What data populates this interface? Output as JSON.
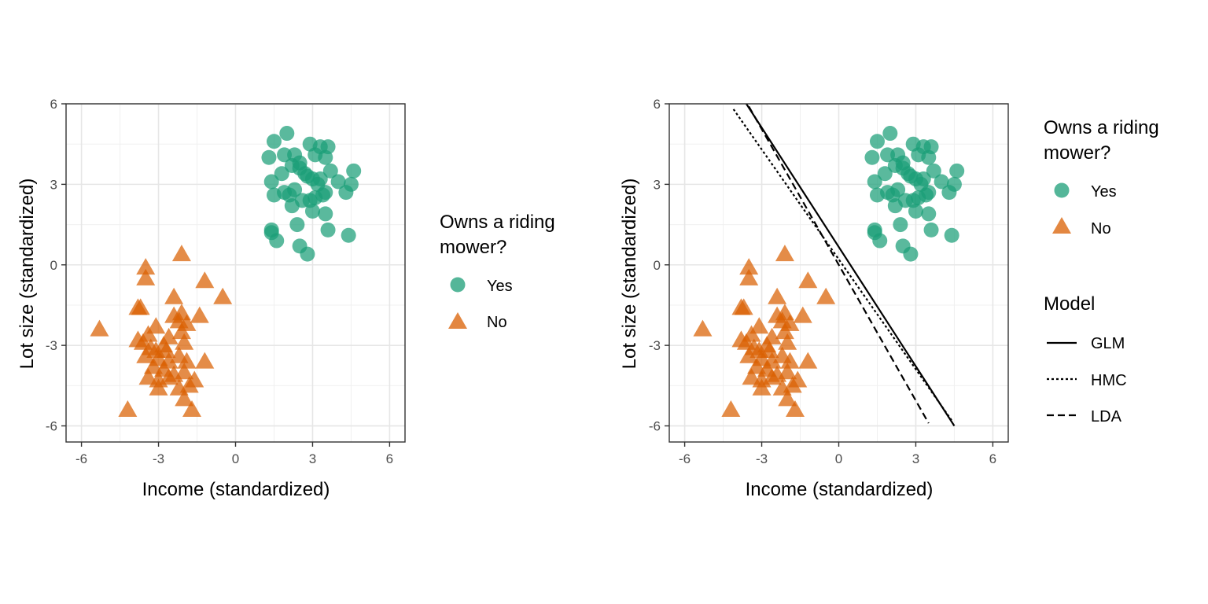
{
  "chart_data": [
    {
      "type": "scatter",
      "xlabel": "Income (standardized)",
      "ylabel": "Lot size (standardized)",
      "xlim": [
        -6.6,
        6.6
      ],
      "ylim": [
        -6.6,
        6.0
      ],
      "xticks": [
        -6,
        -3,
        0,
        3,
        6
      ],
      "yticks": [
        -6,
        -3,
        0,
        3,
        6
      ],
      "tick_labels_x": [
        "-6",
        "-3",
        "0",
        "3",
        "6"
      ],
      "tick_labels_y": [
        "-6",
        "-3",
        "0",
        "3",
        "6"
      ],
      "grid": true,
      "legend": {
        "placement": "right",
        "title_lines": [
          "Owns a riding",
          "mower?"
        ],
        "entries": [
          "Yes",
          "No"
        ]
      },
      "series": [
        {
          "name": "Yes",
          "marker": "circle",
          "color": "#1b9e77",
          "points": [
            [
              1.5,
              4.6
            ],
            [
              2.0,
              4.9
            ],
            [
              1.3,
              4.0
            ],
            [
              2.9,
              4.5
            ],
            [
              3.3,
              4.4
            ],
            [
              3.6,
              4.4
            ],
            [
              3.5,
              4.0
            ],
            [
              1.9,
              4.1
            ],
            [
              2.3,
              4.1
            ],
            [
              2.5,
              3.8
            ],
            [
              3.1,
              4.1
            ],
            [
              1.4,
              3.1
            ],
            [
              1.8,
              3.4
            ],
            [
              2.2,
              3.7
            ],
            [
              2.5,
              3.6
            ],
            [
              2.7,
              3.4
            ],
            [
              2.8,
              3.3
            ],
            [
              3.0,
              3.2
            ],
            [
              3.3,
              3.2
            ],
            [
              3.7,
              3.5
            ],
            [
              4.0,
              3.1
            ],
            [
              4.6,
              3.5
            ],
            [
              4.5,
              3.0
            ],
            [
              1.5,
              2.6
            ],
            [
              1.9,
              2.7
            ],
            [
              2.1,
              2.6
            ],
            [
              2.3,
              2.8
            ],
            [
              2.2,
              2.2
            ],
            [
              2.6,
              2.4
            ],
            [
              2.9,
              2.4
            ],
            [
              3.1,
              2.5
            ],
            [
              3.5,
              2.7
            ],
            [
              4.3,
              2.7
            ],
            [
              3.0,
              2.0
            ],
            [
              3.5,
              1.9
            ],
            [
              2.4,
              1.5
            ],
            [
              1.4,
              1.3
            ],
            [
              1.6,
              0.9
            ],
            [
              2.5,
              0.7
            ],
            [
              2.8,
              0.4
            ],
            [
              3.6,
              1.3
            ],
            [
              4.4,
              1.1
            ],
            [
              1.4,
              1.2
            ],
            [
              3.2,
              3.0
            ],
            [
              3.4,
              2.6
            ]
          ]
        },
        {
          "name": "No",
          "marker": "triangle",
          "color": "#d95f02",
          "points": [
            [
              -2.1,
              0.4
            ],
            [
              -3.5,
              -0.1
            ],
            [
              -3.5,
              -0.5
            ],
            [
              -1.2,
              -0.6
            ],
            [
              -0.5,
              -1.2
            ],
            [
              -2.4,
              -1.2
            ],
            [
              -3.8,
              -1.6
            ],
            [
              -3.7,
              -1.6
            ],
            [
              -2.1,
              -1.8
            ],
            [
              -1.4,
              -1.9
            ],
            [
              -2.4,
              -1.9
            ],
            [
              -2.2,
              -2.1
            ],
            [
              -1.9,
              -2.2
            ],
            [
              -3.1,
              -2.3
            ],
            [
              -2.1,
              -2.5
            ],
            [
              -2.6,
              -2.7
            ],
            [
              -3.4,
              -2.6
            ],
            [
              -3.8,
              -2.8
            ],
            [
              -5.3,
              -2.4
            ],
            [
              -3.6,
              -2.9
            ],
            [
              -2.0,
              -2.9
            ],
            [
              -2.8,
              -3.0
            ],
            [
              -3.1,
              -3.2
            ],
            [
              -3.0,
              -3.5
            ],
            [
              -2.2,
              -3.4
            ],
            [
              -1.9,
              -3.6
            ],
            [
              -3.5,
              -3.4
            ],
            [
              -2.6,
              -3.6
            ],
            [
              -1.2,
              -3.6
            ],
            [
              -3.2,
              -3.8
            ],
            [
              -2.8,
              -3.9
            ],
            [
              -2.0,
              -4.0
            ],
            [
              -3.4,
              -4.2
            ],
            [
              -2.6,
              -4.2
            ],
            [
              -3.0,
              -4.3
            ],
            [
              -2.4,
              -4.1
            ],
            [
              -1.6,
              -4.3
            ],
            [
              -1.8,
              -4.5
            ],
            [
              -3.0,
              -4.6
            ],
            [
              -2.2,
              -4.6
            ],
            [
              -2.0,
              -5.0
            ],
            [
              -1.7,
              -5.4
            ],
            [
              -4.2,
              -5.4
            ],
            [
              -2.7,
              -3.2
            ],
            [
              -3.3,
              -3.1
            ]
          ]
        }
      ]
    },
    {
      "type": "scatter",
      "xlabel": "Income (standardized)",
      "ylabel": "Lot size (standardized)",
      "xlim": [
        -6.6,
        6.6
      ],
      "ylim": [
        -6.6,
        6.0
      ],
      "xticks": [
        -6,
        -3,
        0,
        3,
        6
      ],
      "yticks": [
        -6,
        -3,
        0,
        3,
        6
      ],
      "tick_labels_x": [
        "-6",
        "-3",
        "0",
        "3",
        "6"
      ],
      "tick_labels_y": [
        "-6",
        "-3",
        "0",
        "3",
        "6"
      ],
      "grid": true,
      "legend": {
        "placement": "right",
        "title_lines": [
          "Owns a riding",
          "mower?"
        ],
        "entries": [
          "Yes",
          "No"
        ]
      },
      "model_legend": {
        "title": "Model",
        "entries": [
          "GLM",
          "HMC",
          "LDA"
        ]
      },
      "series": [
        {
          "name": "Yes",
          "marker": "circle",
          "color": "#1b9e77",
          "points": [
            [
              1.5,
              4.6
            ],
            [
              2.0,
              4.9
            ],
            [
              1.3,
              4.0
            ],
            [
              2.9,
              4.5
            ],
            [
              3.3,
              4.4
            ],
            [
              3.6,
              4.4
            ],
            [
              3.5,
              4.0
            ],
            [
              1.9,
              4.1
            ],
            [
              2.3,
              4.1
            ],
            [
              2.5,
              3.8
            ],
            [
              3.1,
              4.1
            ],
            [
              1.4,
              3.1
            ],
            [
              1.8,
              3.4
            ],
            [
              2.2,
              3.7
            ],
            [
              2.5,
              3.6
            ],
            [
              2.7,
              3.4
            ],
            [
              2.8,
              3.3
            ],
            [
              3.0,
              3.2
            ],
            [
              3.3,
              3.2
            ],
            [
              3.7,
              3.5
            ],
            [
              4.0,
              3.1
            ],
            [
              4.6,
              3.5
            ],
            [
              4.5,
              3.0
            ],
            [
              1.5,
              2.6
            ],
            [
              1.9,
              2.7
            ],
            [
              2.1,
              2.6
            ],
            [
              2.3,
              2.8
            ],
            [
              2.2,
              2.2
            ],
            [
              2.6,
              2.4
            ],
            [
              2.9,
              2.4
            ],
            [
              3.1,
              2.5
            ],
            [
              3.5,
              2.7
            ],
            [
              4.3,
              2.7
            ],
            [
              3.0,
              2.0
            ],
            [
              3.5,
              1.9
            ],
            [
              2.4,
              1.5
            ],
            [
              1.4,
              1.3
            ],
            [
              1.6,
              0.9
            ],
            [
              2.5,
              0.7
            ],
            [
              2.8,
              0.4
            ],
            [
              3.6,
              1.3
            ],
            [
              4.4,
              1.1
            ],
            [
              1.4,
              1.2
            ],
            [
              3.2,
              3.0
            ],
            [
              3.4,
              2.6
            ]
          ]
        },
        {
          "name": "No",
          "marker": "triangle",
          "color": "#d95f02",
          "points": [
            [
              -2.1,
              0.4
            ],
            [
              -3.5,
              -0.1
            ],
            [
              -3.5,
              -0.5
            ],
            [
              -1.2,
              -0.6
            ],
            [
              -0.5,
              -1.2
            ],
            [
              -2.4,
              -1.2
            ],
            [
              -3.8,
              -1.6
            ],
            [
              -3.7,
              -1.6
            ],
            [
              -2.1,
              -1.8
            ],
            [
              -1.4,
              -1.9
            ],
            [
              -2.4,
              -1.9
            ],
            [
              -2.2,
              -2.1
            ],
            [
              -1.9,
              -2.2
            ],
            [
              -3.1,
              -2.3
            ],
            [
              -2.1,
              -2.5
            ],
            [
              -2.6,
              -2.7
            ],
            [
              -3.4,
              -2.6
            ],
            [
              -3.8,
              -2.8
            ],
            [
              -5.3,
              -2.4
            ],
            [
              -3.6,
              -2.9
            ],
            [
              -2.0,
              -2.9
            ],
            [
              -2.8,
              -3.0
            ],
            [
              -3.1,
              -3.2
            ],
            [
              -3.0,
              -3.5
            ],
            [
              -2.2,
              -3.4
            ],
            [
              -1.9,
              -3.6
            ],
            [
              -3.5,
              -3.4
            ],
            [
              -2.6,
              -3.6
            ],
            [
              -1.2,
              -3.6
            ],
            [
              -3.2,
              -3.8
            ],
            [
              -2.8,
              -3.9
            ],
            [
              -2.0,
              -4.0
            ],
            [
              -3.4,
              -4.2
            ],
            [
              -2.6,
              -4.2
            ],
            [
              -3.0,
              -4.3
            ],
            [
              -2.4,
              -4.1
            ],
            [
              -1.6,
              -4.3
            ],
            [
              -1.8,
              -4.5
            ],
            [
              -3.0,
              -4.6
            ],
            [
              -2.2,
              -4.6
            ],
            [
              -2.0,
              -5.0
            ],
            [
              -1.7,
              -5.4
            ],
            [
              -4.2,
              -5.4
            ],
            [
              -2.7,
              -3.2
            ],
            [
              -3.3,
              -3.1
            ]
          ]
        }
      ],
      "lines": [
        {
          "name": "GLM",
          "dash": "solid",
          "color": "#000000",
          "points": [
            [
              -3.6,
              6.0
            ],
            [
              4.5,
              -6.0
            ]
          ]
        },
        {
          "name": "HMC",
          "dash": "dotted",
          "color": "#000000",
          "points": [
            [
              -4.1,
              5.8
            ],
            [
              4.4,
              -5.8
            ]
          ]
        },
        {
          "name": "LDA",
          "dash": "dashed",
          "color": "#000000",
          "points": [
            [
              -3.5,
              5.9
            ],
            [
              3.5,
              -5.9
            ]
          ]
        }
      ]
    }
  ]
}
